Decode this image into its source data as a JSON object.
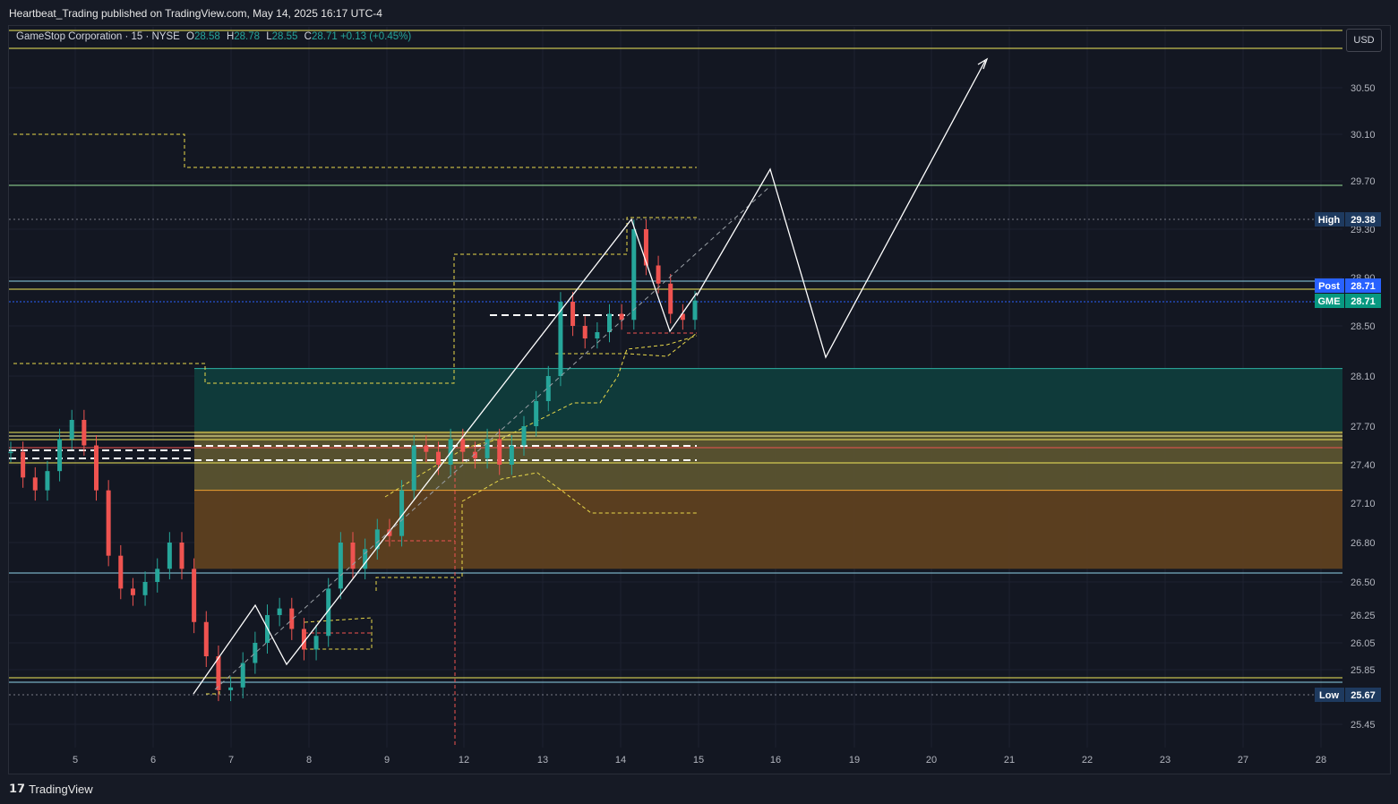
{
  "header": {
    "published": "Heartbeat_Trading published on TradingView.com, May 14, 2025 16:17 UTC-4"
  },
  "legend": {
    "symbol": "GameStop Corporation · 15 · NYSE",
    "o_label": "O",
    "o": "28.58",
    "h_label": "H",
    "h": "28.78",
    "l_label": "L",
    "l": "28.55",
    "c_label": "C",
    "c": "28.71",
    "change": "+0.13 (+0.45%)"
  },
  "currency_button": "USD",
  "footer": {
    "brand": "TradingView",
    "logo_icon": "tradingview-logo-icon"
  },
  "colors": {
    "up": "#26a69a",
    "down": "#ef5350",
    "teal_zone": "#0f3c3c",
    "yellow_zone": "#5a5330",
    "orange_zone": "#5e4020",
    "yellow_line": "#f2e85b",
    "white": "#ffffff",
    "blue_tag": "#2962ff",
    "green_tag": "#089981",
    "dark_tag": "#1e3a5f"
  },
  "chart_data": {
    "type": "candlestick",
    "symbol": "GME",
    "interval": "15",
    "ylim": [
      25.3,
      30.9
    ],
    "y_ticks": [
      "30.50",
      "30.10",
      "29.70",
      "29.30",
      "28.90",
      "28.50",
      "28.10",
      "27.70",
      "27.40",
      "27.10",
      "26.80",
      "26.50",
      "26.25",
      "26.05",
      "25.85",
      "25.45"
    ],
    "x_ticks": [
      "5",
      "6",
      "7",
      "8",
      "9",
      "12",
      "13",
      "14",
      "15",
      "16",
      "19",
      "20",
      "21",
      "22",
      "23",
      "27",
      "28"
    ],
    "price_tags": [
      {
        "label": "High",
        "value": "29.38"
      },
      {
        "label": "Post",
        "value": "28.71"
      },
      {
        "label": "GME",
        "value": "28.71"
      },
      {
        "label": "Low",
        "value": "25.67"
      }
    ],
    "projection_path": [
      28.75,
      29.8,
      28.25,
      30.7
    ],
    "candles_close": [
      27.5,
      27.3,
      27.2,
      27.35,
      27.6,
      27.75,
      27.55,
      27.2,
      26.7,
      26.45,
      26.4,
      26.5,
      26.6,
      26.8,
      26.6,
      26.2,
      25.95,
      25.7,
      25.72,
      25.9,
      26.05,
      26.25,
      26.3,
      26.15,
      26.0,
      26.1,
      26.45,
      26.8,
      26.6,
      26.75,
      26.9,
      26.85,
      27.2,
      27.55,
      27.5,
      27.4,
      27.6,
      27.5,
      27.45,
      27.6,
      27.4,
      27.55,
      27.7,
      27.9,
      28.1,
      28.7,
      28.5,
      28.4,
      28.45,
      28.6,
      28.55,
      29.3,
      29.0,
      28.85,
      28.6,
      28.55,
      28.71
    ],
    "levels": [
      {
        "name": "top-yellow",
        "value": 30.85
      },
      {
        "name": "green-line",
        "value": 29.68
      },
      {
        "name": "cyan-line",
        "value": 28.84
      },
      {
        "name": "yellow-line",
        "value": 28.78
      },
      {
        "name": "cyan-line-2",
        "value": 26.58
      },
      {
        "name": "bottom-yellow",
        "value": 25.8
      },
      {
        "name": "bottom-cyan",
        "value": 25.77
      }
    ],
    "zones": [
      {
        "name": "teal-zone",
        "from": 28.16,
        "to": 27.66
      },
      {
        "name": "yellow-zone",
        "from": 27.66,
        "to": 27.2
      },
      {
        "name": "orange-zone",
        "from": 27.2,
        "to": 26.6
      }
    ]
  }
}
